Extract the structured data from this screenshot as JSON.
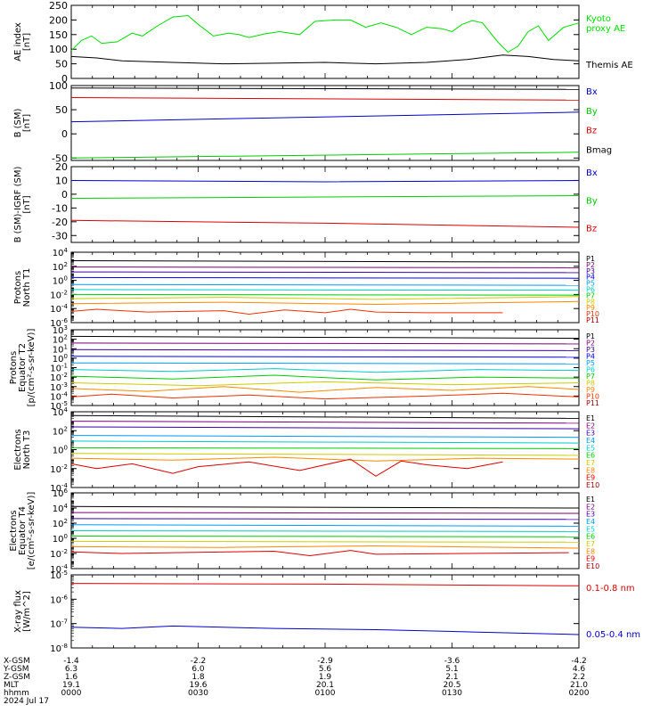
{
  "chart_data": [
    {
      "type": "line",
      "id": "ae",
      "ylabel": [
        "AE index",
        "[nT]"
      ],
      "ylim": [
        0,
        250
      ],
      "yticks": [
        0,
        50,
        100,
        150,
        200,
        250
      ],
      "log": false,
      "series": [
        {
          "name": "Kyoto proxy AE",
          "label_lines": [
            "Kyoto",
            "proxy AE"
          ],
          "color": "#00dd00",
          "x": [
            0,
            2,
            4,
            6,
            9,
            12,
            14,
            17,
            20,
            23,
            25,
            28,
            31,
            33,
            35,
            38,
            41,
            45,
            48,
            52,
            55,
            58,
            61,
            64,
            67,
            70,
            73,
            75,
            77,
            79,
            81,
            84,
            86,
            88,
            90,
            92,
            94,
            97,
            100
          ],
          "y": [
            95,
            130,
            145,
            120,
            125,
            155,
            145,
            180,
            210,
            215,
            185,
            145,
            155,
            150,
            140,
            152,
            160,
            150,
            195,
            200,
            200,
            175,
            190,
            175,
            150,
            175,
            170,
            160,
            185,
            198,
            190,
            125,
            90,
            110,
            160,
            180,
            130,
            175,
            190
          ]
        },
        {
          "name": "Themis AE",
          "label_lines": [
            "Themis AE"
          ],
          "color": "#000000",
          "x": [
            0,
            5,
            10,
            20,
            30,
            40,
            50,
            60,
            70,
            78,
            85,
            90,
            95,
            100
          ],
          "y": [
            75,
            70,
            60,
            55,
            50,
            52,
            55,
            50,
            55,
            65,
            80,
            75,
            65,
            60
          ]
        }
      ]
    },
    {
      "type": "line",
      "id": "b_sm",
      "ylabel": [
        "B (SM)",
        "[nT]"
      ],
      "ylim": [
        -55,
        100
      ],
      "yticks": [
        -50,
        0,
        50,
        100
      ],
      "log": false,
      "series": [
        {
          "name": "Bx",
          "color": "#0000cc",
          "x": [
            0,
            100
          ],
          "y": [
            25,
            45
          ]
        },
        {
          "name": "By",
          "color": "#00cc00",
          "x": [
            0,
            100
          ],
          "y": [
            -50,
            -38
          ]
        },
        {
          "name": "Bz",
          "color": "#dd0000",
          "x": [
            0,
            100
          ],
          "y": [
            75,
            70
          ]
        },
        {
          "name": "Bmag",
          "color": "#000000",
          "x": [
            0,
            100
          ],
          "y": [
            95,
            92
          ]
        }
      ]
    },
    {
      "type": "line",
      "id": "b_igrf",
      "ylabel": [
        "B (SM)-IGRF (SM)",
        "[nT]"
      ],
      "ylim": [
        -35,
        20
      ],
      "yticks": [
        -30,
        -20,
        -10,
        0,
        10,
        20
      ],
      "log": false,
      "series": [
        {
          "name": "Bx",
          "color": "#0000cc",
          "x": [
            0,
            50,
            100
          ],
          "y": [
            10,
            9,
            10
          ]
        },
        {
          "name": "By",
          "color": "#00cc00",
          "x": [
            0,
            50,
            100
          ],
          "y": [
            -3,
            -2,
            -1
          ]
        },
        {
          "name": "Bz",
          "color": "#dd0000",
          "x": [
            0,
            50,
            100
          ],
          "y": [
            -19,
            -21,
            -24
          ]
        }
      ]
    },
    {
      "type": "line",
      "id": "protons_t1",
      "ylabel": [
        "Protons",
        "North T1"
      ],
      "ylim": [
        -6,
        4
      ],
      "yticks": [
        -6,
        -4,
        -2,
        0,
        2,
        4
      ],
      "log": true,
      "series": [
        {
          "name": "P1",
          "color": "#000000",
          "x": [
            0,
            100
          ],
          "y": [
            2.8,
            2.6
          ]
        },
        {
          "name": "P2",
          "color": "#7a0077",
          "x": [
            0,
            100
          ],
          "y": [
            1.9,
            1.8
          ]
        },
        {
          "name": "P3",
          "color": "#3a00aa",
          "x": [
            0,
            100
          ],
          "y": [
            1.2,
            1.1
          ]
        },
        {
          "name": "P4",
          "color": "#0000ff",
          "x": [
            0,
            100
          ],
          "y": [
            0.4,
            0.3
          ]
        },
        {
          "name": "P5",
          "color": "#0099ff",
          "x": [
            0,
            100
          ],
          "y": [
            -0.6,
            -0.7
          ]
        },
        {
          "name": "P6",
          "color": "#00cccc",
          "x": [
            0,
            100
          ],
          "y": [
            -1.3,
            -1.4
          ]
        },
        {
          "name": "P7",
          "color": "#00cc00",
          "x": [
            0,
            100
          ],
          "y": [
            -2.0,
            -2.1
          ]
        },
        {
          "name": "P8",
          "color": "#cccc00",
          "x": [
            0,
            30,
            60,
            100
          ],
          "y": [
            -2.6,
            -2.4,
            -2.7,
            -2.3
          ]
        },
        {
          "name": "P9",
          "color": "#ff8800",
          "x": [
            0,
            30,
            60,
            100
          ],
          "y": [
            -3.3,
            -3.1,
            -3.4,
            -3.0
          ]
        },
        {
          "name": "P10",
          "color": "#ee3300",
          "x": [
            0,
            5,
            10,
            15,
            30,
            35,
            42,
            50,
            55,
            60,
            70,
            80,
            85
          ],
          "y": [
            -4.4,
            -4.1,
            -4.3,
            -4.5,
            -4.3,
            -4.8,
            -4.2,
            -4.6,
            -4.1,
            -4.5,
            -4.6,
            -4.6,
            -4.6
          ]
        },
        {
          "name": "P11",
          "color": "#aa0000",
          "x": [],
          "y": []
        }
      ]
    },
    {
      "type": "line",
      "id": "protons_t2",
      "ylabel": [
        "Protons",
        "Equator T2",
        "[p/(cm²-s-sr-keV)]"
      ],
      "ylim": [
        -5,
        3
      ],
      "yticks": [
        -5,
        -4,
        -3,
        -2,
        -1,
        0,
        1,
        2,
        3
      ],
      "log": true,
      "series": [
        {
          "name": "P1",
          "color": "#000000",
          "x": [
            0,
            100
          ],
          "y": [
            2.3,
            2.1
          ]
        },
        {
          "name": "P2",
          "color": "#7a0077",
          "x": [
            0,
            100
          ],
          "y": [
            1.6,
            1.5
          ]
        },
        {
          "name": "P3",
          "color": "#3a00aa",
          "x": [
            0,
            100
          ],
          "y": [
            0.9,
            0.8
          ]
        },
        {
          "name": "P4",
          "color": "#0000ff",
          "x": [
            0,
            100
          ],
          "y": [
            0.2,
            0.1
          ]
        },
        {
          "name": "P5",
          "color": "#0099ff",
          "x": [
            0,
            100
          ],
          "y": [
            -0.5,
            -0.6
          ]
        },
        {
          "name": "P6",
          "color": "#00cccc",
          "x": [
            0,
            20,
            40,
            60,
            80,
            100
          ],
          "y": [
            -1.2,
            -1.4,
            -1.1,
            -1.5,
            -1.2,
            -1.3
          ]
        },
        {
          "name": "P7",
          "color": "#00cc00",
          "x": [
            0,
            20,
            40,
            60,
            80,
            100
          ],
          "y": [
            -1.9,
            -2.2,
            -1.8,
            -2.3,
            -2.0,
            -2.1
          ]
        },
        {
          "name": "P8",
          "color": "#cccc00",
          "x": [
            0,
            25,
            50,
            75,
            100
          ],
          "y": [
            -2.6,
            -2.9,
            -2.5,
            -2.8,
            -2.6
          ]
        },
        {
          "name": "P9",
          "color": "#ff8800",
          "x": [
            0,
            15,
            30,
            45,
            60,
            75,
            90,
            100
          ],
          "y": [
            -3.2,
            -3.5,
            -3.0,
            -3.6,
            -3.1,
            -3.4,
            -3.0,
            -3.3
          ]
        },
        {
          "name": "P10",
          "color": "#ee3300",
          "x": [
            0,
            8,
            20,
            35,
            50,
            70,
            85,
            100
          ],
          "y": [
            -4.1,
            -3.8,
            -4.2,
            -3.9,
            -4.3,
            -4.0,
            -3.7,
            -4.1
          ]
        },
        {
          "name": "P11",
          "color": "#aa0000",
          "x": [],
          "y": []
        }
      ]
    },
    {
      "type": "line",
      "id": "electrons_t3",
      "ylabel": [
        "Electrons",
        "North T3"
      ],
      "ylim": [
        -4,
        4
      ],
      "yticks": [
        -4,
        -2,
        0,
        2,
        4
      ],
      "log": true,
      "series": [
        {
          "name": "E1",
          "color": "#000000",
          "x": [
            0,
            100
          ],
          "y": [
            3.6,
            3.3
          ]
        },
        {
          "name": "E2",
          "color": "#7a0077",
          "x": [
            0,
            100
          ],
          "y": [
            3.0,
            2.8
          ]
        },
        {
          "name": "E3",
          "color": "#3a00aa",
          "x": [
            0,
            100
          ],
          "y": [
            2.4,
            2.2
          ]
        },
        {
          "name": "E4",
          "color": "#0099ff",
          "x": [
            0,
            100
          ],
          "y": [
            1.5,
            1.3
          ]
        },
        {
          "name": "E5",
          "color": "#00cccc",
          "x": [
            0,
            100
          ],
          "y": [
            0.9,
            0.7
          ]
        },
        {
          "name": "E6",
          "color": "#00cc00",
          "x": [
            0,
            100
          ],
          "y": [
            0.2,
            0.1
          ]
        },
        {
          "name": "E7",
          "color": "#cccc00",
          "x": [
            0,
            100
          ],
          "y": [
            -0.4,
            -0.6
          ]
        },
        {
          "name": "E8",
          "color": "#ff8800",
          "x": [
            0,
            20,
            40,
            60,
            80,
            100
          ],
          "y": [
            -0.9,
            -1.1,
            -0.8,
            -1.2,
            -0.9,
            -1.0
          ]
        },
        {
          "name": "E9",
          "color": "#dd0000",
          "x": [
            0,
            5,
            12,
            20,
            25,
            35,
            45,
            55,
            60,
            65,
            70,
            78,
            85
          ],
          "y": [
            -1.5,
            -2.0,
            -1.5,
            -2.5,
            -1.8,
            -1.3,
            -2.2,
            -1.0,
            -2.8,
            -1.2,
            -1.6,
            -2.0,
            -1.3
          ]
        },
        {
          "name": "E10",
          "color": "#aa0000",
          "x": [],
          "y": []
        }
      ]
    },
    {
      "type": "line",
      "id": "electrons_t4",
      "ylabel": [
        "Electrons",
        "Equator T4",
        "[e/(cm²-s-sr-keV)]"
      ],
      "ylim": [
        -4,
        6
      ],
      "yticks": [
        -4,
        -2,
        0,
        2,
        4,
        6
      ],
      "log": true,
      "series": [
        {
          "name": "E1",
          "color": "#000000",
          "x": [
            0,
            100
          ],
          "y": [
            4.2,
            4.0
          ]
        },
        {
          "name": "E2",
          "color": "#7a0077",
          "x": [
            0,
            100
          ],
          "y": [
            3.4,
            3.3
          ]
        },
        {
          "name": "E3",
          "color": "#3a00aa",
          "x": [
            0,
            100
          ],
          "y": [
            2.6,
            2.5
          ]
        },
        {
          "name": "E4",
          "color": "#0099ff",
          "x": [
            0,
            100
          ],
          "y": [
            1.8,
            1.6
          ]
        },
        {
          "name": "E5",
          "color": "#00cccc",
          "x": [
            0,
            100
          ],
          "y": [
            1.0,
            0.9
          ]
        },
        {
          "name": "E6",
          "color": "#00cc00",
          "x": [
            0,
            100
          ],
          "y": [
            0.3,
            0.2
          ]
        },
        {
          "name": "E7",
          "color": "#cccc00",
          "x": [
            0,
            100
          ],
          "y": [
            -0.4,
            -0.5
          ]
        },
        {
          "name": "E8",
          "color": "#ff8800",
          "x": [
            0,
            30,
            60,
            100
          ],
          "y": [
            -1.1,
            -1.2,
            -1.0,
            -1.3
          ]
        },
        {
          "name": "E9",
          "color": "#dd0000",
          "x": [
            0,
            10,
            20,
            40,
            47,
            55,
            60,
            98
          ],
          "y": [
            -1.8,
            -2.0,
            -1.9,
            -1.7,
            -2.3,
            -1.6,
            -2.1,
            -1.9
          ]
        },
        {
          "name": "E10",
          "color": "#aa0000",
          "x": [],
          "y": []
        }
      ]
    },
    {
      "type": "line",
      "id": "xray",
      "ylabel": [
        "X-ray flux",
        "[W/m^2]"
      ],
      "ylim": [
        -8,
        -5
      ],
      "yticks": [
        -8,
        -7,
        -6,
        -5
      ],
      "log": true,
      "series": [
        {
          "name": "0.1-0.8 nm",
          "color": "#dd0000",
          "x": [
            0,
            50,
            100
          ],
          "y": [
            -5.35,
            -5.38,
            -5.45
          ]
        },
        {
          "name": "0.05-0.4 nm",
          "color": "#0000cc",
          "x": [
            0,
            10,
            20,
            40,
            60,
            80,
            100
          ],
          "y": [
            -7.15,
            -7.2,
            -7.1,
            -7.2,
            -7.25,
            -7.35,
            -7.45
          ]
        }
      ]
    }
  ],
  "x_axis": {
    "rows": [
      {
        "label": "X-GSM",
        "values": [
          "-1.4",
          "-2.2",
          "-2.9",
          "-3.6",
          "-4.2"
        ]
      },
      {
        "label": "Y-GSM",
        "values": [
          "6.3",
          "6.0",
          "5.6",
          "5.1",
          "4.6"
        ]
      },
      {
        "label": "Z-GSM",
        "values": [
          "1.6",
          "1.8",
          "1.9",
          "2.1",
          "2.2"
        ]
      },
      {
        "label": "MLT",
        "values": [
          "19.1",
          "19.6",
          "20.1",
          "20.5",
          "21.0"
        ]
      },
      {
        "label": "hhmm",
        "values": [
          "0000",
          "0030",
          "0100",
          "0130",
          "0200"
        ]
      }
    ],
    "date": "2024 Jul 17"
  }
}
